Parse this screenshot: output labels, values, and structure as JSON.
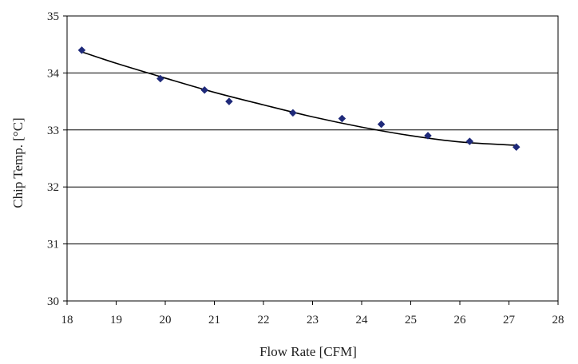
{
  "chart_data": {
    "type": "scatter",
    "xlabel": "Flow Rate [CFM]",
    "ylabel": "Chip Temp. [°C]",
    "xlim": [
      18,
      28
    ],
    "ylim": [
      30,
      35
    ],
    "xticks": [
      18,
      19,
      20,
      21,
      22,
      23,
      24,
      25,
      26,
      27,
      28
    ],
    "yticks": [
      30,
      31,
      32,
      33,
      34,
      35
    ],
    "grid": "horizontal",
    "legend": "none",
    "series": [
      {
        "marker": "diamond",
        "color": "#1f2a7a",
        "x": [
          18.3,
          19.9,
          20.8,
          21.3,
          22.6,
          23.6,
          24.4,
          25.35,
          26.2,
          27.15
        ],
        "y": [
          34.4,
          33.9,
          33.7,
          33.5,
          33.3,
          33.2,
          33.1,
          32.9,
          32.8,
          32.7
        ]
      }
    ],
    "trendline": {
      "color": "#000000",
      "x": [
        18.3,
        19.0,
        20.0,
        21.0,
        22.0,
        23.0,
        24.0,
        25.0,
        26.0,
        27.15
      ],
      "y": [
        34.37,
        34.17,
        33.91,
        33.66,
        33.44,
        33.23,
        33.05,
        32.9,
        32.79,
        32.73
      ]
    }
  }
}
